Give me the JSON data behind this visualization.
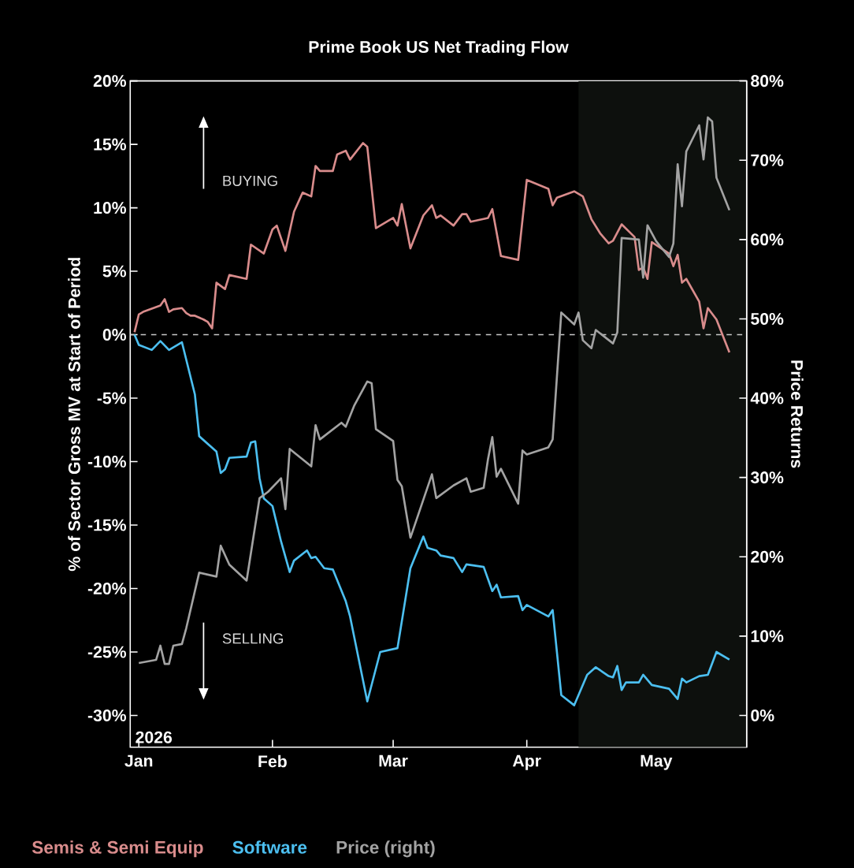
{
  "chart_data": {
    "type": "line",
    "title": "Prime Book US Net Trading Flow",
    "ylabel": "% of Sector Gross MV at Start of Period",
    "y2label": "Price Returns",
    "xlim": [
      "2025-12-30",
      "2026-05-22"
    ],
    "xticks": [
      {
        "value": "2026-01-01",
        "label": "Jan"
      },
      {
        "value": "2026-02-01",
        "label": "Feb"
      },
      {
        "value": "2026-03-01",
        "label": "Mar"
      },
      {
        "value": "2026-04-01",
        "label": "Apr"
      },
      {
        "value": "2026-05-01",
        "label": "May"
      }
    ],
    "ylim": [
      -32.5,
      20
    ],
    "yticks": [
      {
        "value": -30,
        "label": "-30%"
      },
      {
        "value": -25,
        "label": "-25%"
      },
      {
        "value": -20,
        "label": "-20%"
      },
      {
        "value": -15,
        "label": "-15%"
      },
      {
        "value": -10,
        "label": "-10%"
      },
      {
        "value": -5,
        "label": "-5%"
      },
      {
        "value": 0,
        "label": "0%"
      },
      {
        "value": 5,
        "label": "5%"
      },
      {
        "value": 10,
        "label": "10%"
      },
      {
        "value": 15,
        "label": "15%"
      },
      {
        "value": 20,
        "label": "20%"
      }
    ],
    "y2lim": [
      -4,
      80
    ],
    "y2ticks": [
      {
        "value": 0,
        "label": "0%"
      },
      {
        "value": 10,
        "label": "10%"
      },
      {
        "value": 20,
        "label": "20%"
      },
      {
        "value": 30,
        "label": "30%"
      },
      {
        "value": 40,
        "label": "40%"
      },
      {
        "value": 50,
        "label": "50%"
      },
      {
        "value": 60,
        "label": "60%"
      },
      {
        "value": 70,
        "label": "70%"
      },
      {
        "value": 80,
        "label": "80%"
      }
    ],
    "legend": "bottom",
    "series": [
      {
        "name": "Semis & Semi Equip",
        "color": "#d98c8c",
        "x": [
          "2025-12-31",
          "2026-01-01",
          "2026-01-02",
          "2026-01-06",
          "2026-01-07",
          "2026-01-08",
          "2026-01-09",
          "2026-01-11",
          "2026-01-12",
          "2026-01-13",
          "2026-01-14",
          "2026-01-16",
          "2026-01-17",
          "2026-01-18",
          "2026-01-19",
          "2026-01-21",
          "2026-01-22",
          "2026-01-26",
          "2026-01-27",
          "2026-01-30",
          "2026-02-01",
          "2026-02-02",
          "2026-02-04",
          "2026-02-06",
          "2026-02-08",
          "2026-02-10",
          "2026-02-11",
          "2026-02-12",
          "2026-02-15",
          "2026-02-16",
          "2026-02-18",
          "2026-02-19",
          "2026-02-22",
          "2026-02-23",
          "2026-02-25",
          "2026-03-01",
          "2026-03-02",
          "2026-03-03",
          "2026-03-05",
          "2026-03-08",
          "2026-03-10",
          "2026-03-11",
          "2026-03-12",
          "2026-03-15",
          "2026-03-17",
          "2026-03-18",
          "2026-03-19",
          "2026-03-23",
          "2026-03-24",
          "2026-03-26",
          "2026-03-30",
          "2026-04-01",
          "2026-04-06",
          "2026-04-07",
          "2026-04-08",
          "2026-04-12",
          "2026-04-14",
          "2026-04-16",
          "2026-04-18",
          "2026-04-20",
          "2026-04-21",
          "2026-04-23",
          "2026-04-26",
          "2026-04-27",
          "2026-04-28",
          "2026-04-29",
          "2026-04-30",
          "2026-05-04",
          "2026-05-05",
          "2026-05-06",
          "2026-05-07",
          "2026-05-08",
          "2026-05-11",
          "2026-05-12",
          "2026-05-13",
          "2026-05-15",
          "2026-05-18"
        ],
        "values": [
          0.2,
          1.6,
          1.8,
          2.3,
          2.8,
          1.8,
          2.0,
          2.1,
          1.7,
          1.5,
          1.5,
          1.2,
          1.0,
          0.5,
          4.1,
          3.6,
          4.7,
          4.4,
          7.1,
          6.4,
          8.3,
          8.6,
          6.6,
          9.7,
          11.2,
          10.9,
          13.3,
          12.9,
          12.9,
          14.2,
          14.5,
          13.8,
          15.1,
          14.8,
          8.4,
          9.2,
          8.6,
          10.3,
          6.8,
          9.4,
          10.2,
          9.2,
          9.4,
          8.6,
          9.5,
          9.5,
          8.9,
          9.2,
          9.9,
          6.2,
          5.9,
          12.2,
          11.5,
          10.2,
          10.8,
          11.3,
          10.9,
          9.1,
          8.0,
          7.2,
          7.4,
          8.7,
          7.7,
          5.1,
          5.3,
          4.4,
          7.3,
          6.4,
          5.4,
          6.3,
          4.1,
          4.4,
          2.6,
          0.5,
          2.1,
          1.2,
          -1.4
        ]
      },
      {
        "name": "Software",
        "color": "#4cbff0",
        "x": [
          "2025-12-31",
          "2026-01-01",
          "2026-01-04",
          "2026-01-06",
          "2026-01-08",
          "2026-01-11",
          "2026-01-14",
          "2026-01-15",
          "2026-01-19",
          "2026-01-20",
          "2026-01-21",
          "2026-01-22",
          "2026-01-26",
          "2026-01-27",
          "2026-01-28",
          "2026-01-29",
          "2026-01-30",
          "2026-02-01",
          "2026-02-03",
          "2026-02-05",
          "2026-02-06",
          "2026-02-09",
          "2026-02-10",
          "2026-02-11",
          "2026-02-13",
          "2026-02-15",
          "2026-02-18",
          "2026-02-19",
          "2026-02-23",
          "2026-02-26",
          "2026-03-02",
          "2026-03-05",
          "2026-03-08",
          "2026-03-09",
          "2026-03-11",
          "2026-03-12",
          "2026-03-15",
          "2026-03-17",
          "2026-03-18",
          "2026-03-22",
          "2026-03-24",
          "2026-03-25",
          "2026-03-26",
          "2026-03-30",
          "2026-03-31",
          "2026-04-01",
          "2026-04-06",
          "2026-04-07",
          "2026-04-09",
          "2026-04-12",
          "2026-04-15",
          "2026-04-17",
          "2026-04-20",
          "2026-04-21",
          "2026-04-22",
          "2026-04-23",
          "2026-04-24",
          "2026-04-27",
          "2026-04-28",
          "2026-04-30",
          "2026-05-04",
          "2026-05-06",
          "2026-05-07",
          "2026-05-08",
          "2026-05-11",
          "2026-05-13",
          "2026-05-15",
          "2026-05-18"
        ],
        "values": [
          0.0,
          -0.8,
          -1.2,
          -0.5,
          -1.2,
          -0.6,
          -4.7,
          -8.0,
          -9.2,
          -10.9,
          -10.6,
          -9.7,
          -9.6,
          -8.5,
          -8.4,
          -11.3,
          -12.9,
          -13.5,
          -16.3,
          -18.7,
          -17.8,
          -17.0,
          -17.6,
          -17.5,
          -18.4,
          -18.5,
          -21.0,
          -22.2,
          -28.9,
          -25.0,
          -24.7,
          -18.4,
          -15.9,
          -16.8,
          -17.0,
          -17.4,
          -17.6,
          -18.7,
          -18.1,
          -18.3,
          -20.2,
          -19.7,
          -20.7,
          -20.6,
          -21.7,
          -21.3,
          -22.2,
          -21.7,
          -28.4,
          -29.2,
          -26.8,
          -26.2,
          -26.9,
          -27.0,
          -26.1,
          -28.0,
          -27.4,
          -27.4,
          -26.8,
          -27.6,
          -27.9,
          -28.7,
          -27.1,
          -27.4,
          -26.9,
          -26.8,
          -25.0,
          -25.6
        ]
      },
      {
        "name": "Price (right)",
        "color": "#a3a3a3",
        "axis": "y2",
        "x": [
          "2026-01-01",
          "2026-01-05",
          "2026-01-06",
          "2026-01-07",
          "2026-01-08",
          "2026-01-09",
          "2026-01-11",
          "2026-01-12",
          "2026-01-15",
          "2026-01-19",
          "2026-01-20",
          "2026-01-22",
          "2026-01-26",
          "2026-01-29",
          "2026-01-31",
          "2026-02-03",
          "2026-02-04",
          "2026-02-05",
          "2026-02-10",
          "2026-02-11",
          "2026-02-12",
          "2026-02-17",
          "2026-02-18",
          "2026-02-20",
          "2026-02-23",
          "2026-02-24",
          "2026-02-25",
          "2026-03-01",
          "2026-03-02",
          "2026-03-03",
          "2026-03-05",
          "2026-03-10",
          "2026-03-11",
          "2026-03-15",
          "2026-03-18",
          "2026-03-19",
          "2026-03-22",
          "2026-03-23",
          "2026-03-24",
          "2026-03-25",
          "2026-03-26",
          "2026-03-30",
          "2026-03-31",
          "2026-04-01",
          "2026-04-06",
          "2026-04-07",
          "2026-04-09",
          "2026-04-12",
          "2026-04-13",
          "2026-04-14",
          "2026-04-16",
          "2026-04-17",
          "2026-04-21",
          "2026-04-22",
          "2026-04-23",
          "2026-04-27",
          "2026-04-28",
          "2026-04-29",
          "2026-05-01",
          "2026-05-04",
          "2026-05-05",
          "2026-05-06",
          "2026-05-07",
          "2026-05-08",
          "2026-05-11",
          "2026-05-12",
          "2026-05-13",
          "2026-05-14",
          "2026-05-15",
          "2026-05-18"
        ],
        "values": [
          6.6,
          7.0,
          8.8,
          6.5,
          6.5,
          8.8,
          9.0,
          11.0,
          18.0,
          17.5,
          21.4,
          19.0,
          17.0,
          27.4,
          28.2,
          29.9,
          26.0,
          33.6,
          31.4,
          36.6,
          34.8,
          36.9,
          36.4,
          39.1,
          42.1,
          41.9,
          36.1,
          34.6,
          29.7,
          28.9,
          22.4,
          30.4,
          27.4,
          29.0,
          29.9,
          28.2,
          28.7,
          32.3,
          35.1,
          30.1,
          31.1,
          26.7,
          33.4,
          32.9,
          33.8,
          34.8,
          50.8,
          49.3,
          50.8,
          47.3,
          46.3,
          48.6,
          46.9,
          48.3,
          60.2,
          60.0,
          55.2,
          61.8,
          59.8,
          57.8,
          59.5,
          69.5,
          64.2,
          71.1,
          74.4,
          70.1,
          75.4,
          74.9,
          67.8,
          63.7
        ]
      }
    ],
    "ref_lines": [
      {
        "axis": "y",
        "value": 0,
        "color": "#c8c8c8",
        "line_style": "dashed"
      }
    ],
    "bands": [
      {
        "axis": "x",
        "from": "2026-04-13",
        "to": "2026-05-22",
        "color": "#0d100d"
      }
    ],
    "annotations": [
      "BUYING",
      "SELLING",
      "2026"
    ]
  }
}
